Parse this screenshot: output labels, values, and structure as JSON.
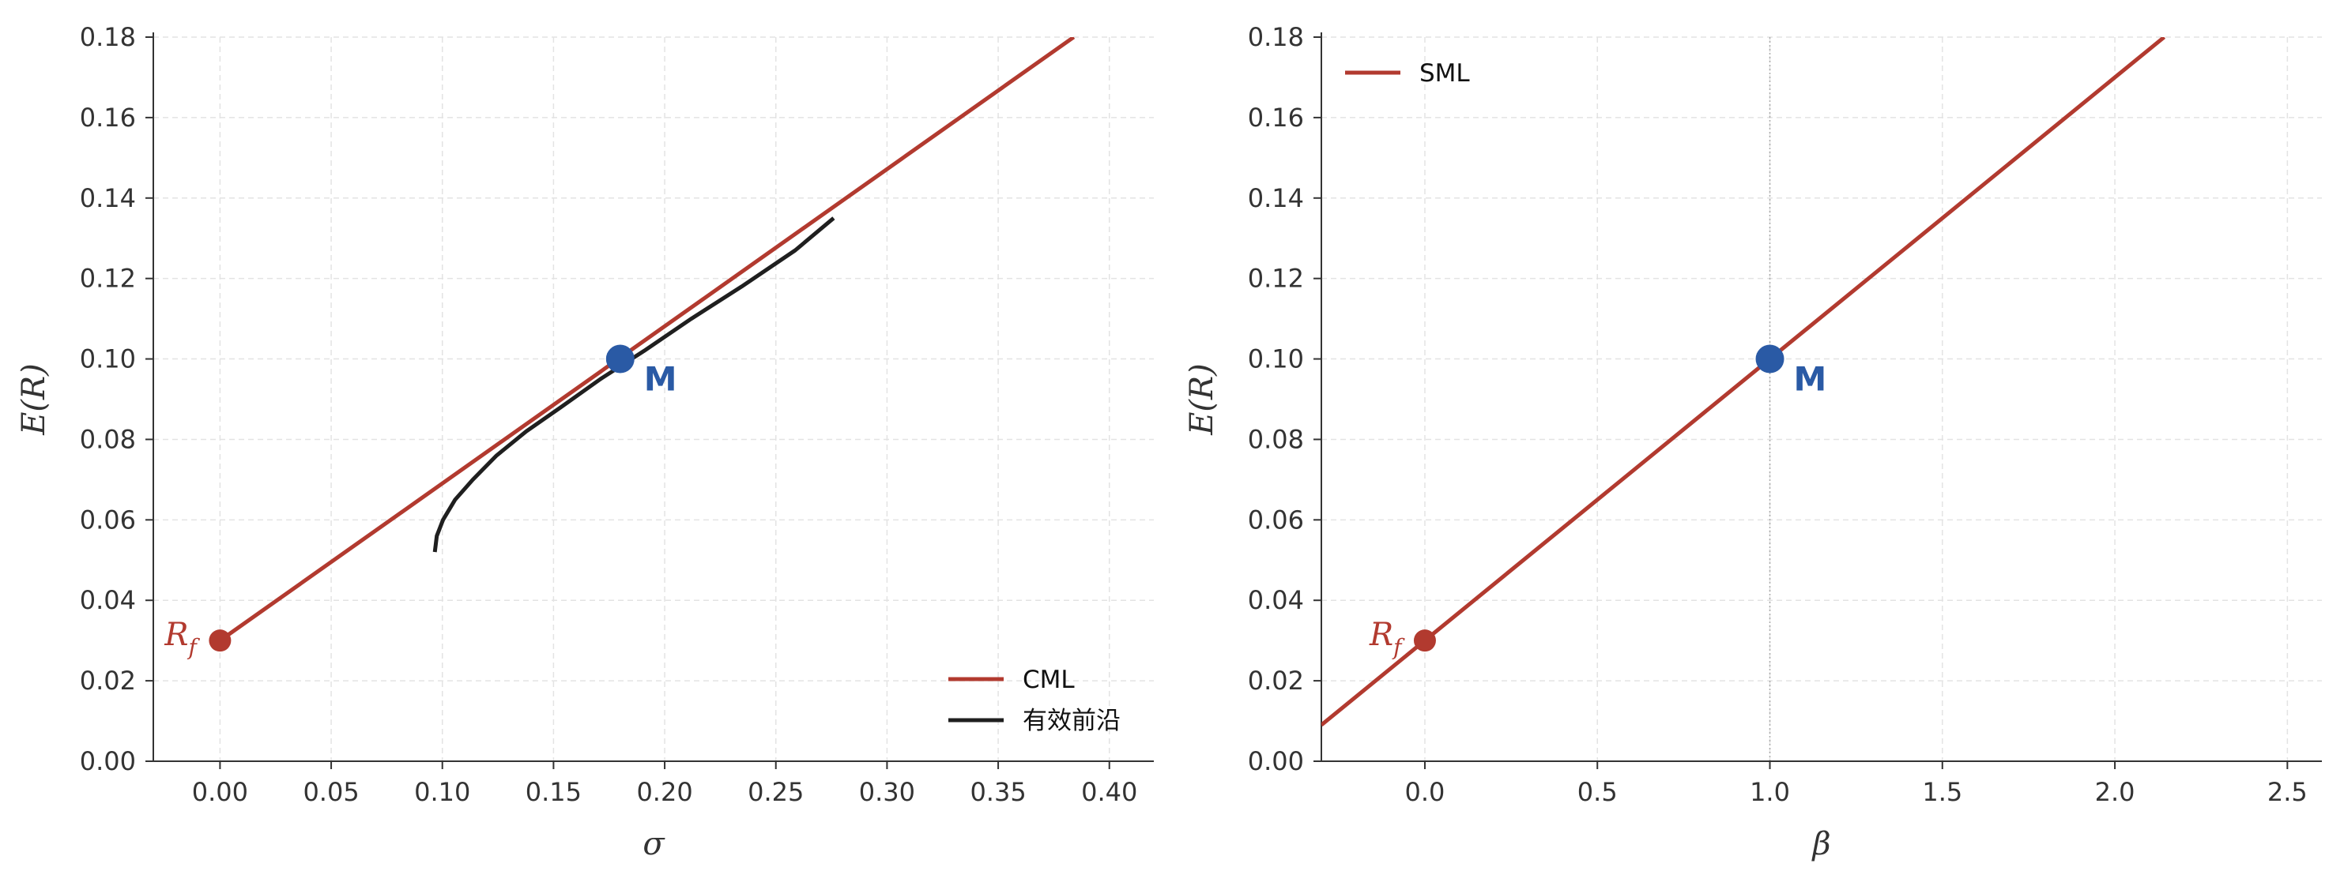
{
  "chart_data": [
    {
      "type": "line",
      "xlabel": "σ",
      "ylabel": "E(R)",
      "xlim": [
        -0.03,
        0.42
      ],
      "ylim": [
        0,
        0.18
      ],
      "x_ticks": [
        "0.00",
        "0.05",
        "0.10",
        "0.15",
        "0.20",
        "0.25",
        "0.30",
        "0.35",
        "0.40"
      ],
      "y_ticks": [
        "0.00",
        "0.02",
        "0.04",
        "0.06",
        "0.08",
        "0.10",
        "0.12",
        "0.14",
        "0.16",
        "0.18"
      ],
      "grid": true,
      "legend_position": "bottom-right",
      "series": [
        {
          "name": "CML",
          "color": "#b23a2f",
          "kind": "line",
          "x": [
            0.0,
            0.384
          ],
          "y": [
            0.03,
            0.18
          ]
        },
        {
          "name": "有效前沿",
          "color": "#1f1f1f",
          "kind": "line",
          "x": [
            0.0966,
            0.0975,
            0.1003,
            0.1057,
            0.1137,
            0.1244,
            0.1377,
            0.1533,
            0.1711,
            0.1907,
            0.212,
            0.2346,
            0.2587,
            0.276
          ],
          "y": [
            0.052,
            0.056,
            0.06,
            0.065,
            0.07,
            0.076,
            0.082,
            0.088,
            0.095,
            0.102,
            0.11,
            0.118,
            0.127,
            0.135
          ]
        }
      ],
      "points": [
        {
          "label": "M",
          "x": 0.18,
          "y": 0.1,
          "color": "#2a5aa5"
        },
        {
          "label": "R_f",
          "x": 0.0,
          "y": 0.03,
          "color": "#b23a2f"
        }
      ]
    },
    {
      "type": "line",
      "xlabel": "β",
      "ylabel": "E(R)",
      "xlim": [
        -0.3,
        2.6
      ],
      "ylim": [
        0,
        0.18
      ],
      "x_ticks": [
        "0.0",
        "0.5",
        "1.0",
        "1.5",
        "2.0",
        "2.5"
      ],
      "y_ticks": [
        "0.00",
        "0.02",
        "0.04",
        "0.06",
        "0.08",
        "0.10",
        "0.12",
        "0.14",
        "0.16",
        "0.18"
      ],
      "grid": true,
      "legend_position": "top-left",
      "series": [
        {
          "name": "SML",
          "color": "#b23a2f",
          "kind": "line",
          "x": [
            -0.3,
            2.143
          ],
          "y": [
            0.009,
            0.18
          ]
        }
      ],
      "points": [
        {
          "label": "M",
          "x": 1.0,
          "y": 0.1,
          "color": "#2a5aa5"
        },
        {
          "label": "R_f",
          "x": 0.0,
          "y": 0.03,
          "color": "#b23a2f"
        }
      ],
      "vline_x": 1.0
    }
  ]
}
